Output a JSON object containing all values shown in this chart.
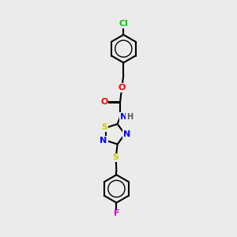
{
  "background_color": "#ebebeb",
  "bond_color": "#000000",
  "atom_colors": {
    "Cl": "#00cc00",
    "O": "#ff0000",
    "N": "#0000ff",
    "S": "#cccc00",
    "F": "#cc00cc",
    "C": "#000000",
    "H": "#555555"
  },
  "title": "",
  "figsize": [
    3.0,
    3.0
  ],
  "dpi": 100
}
